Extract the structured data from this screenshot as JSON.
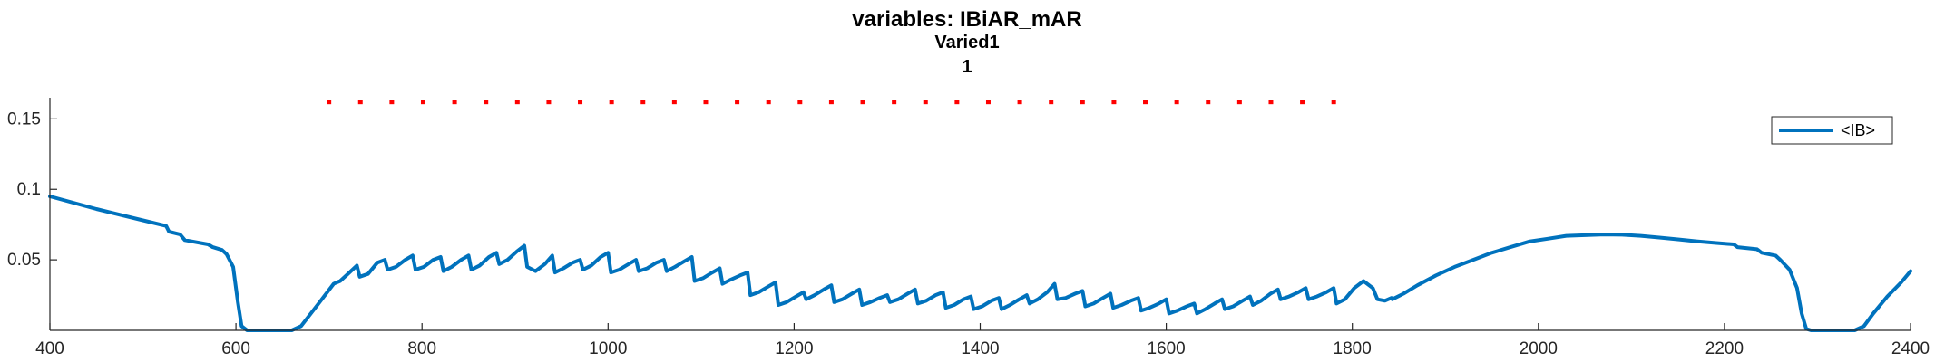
{
  "chart_data": {
    "type": "line",
    "title": "variables: IBiAR_mAR",
    "subtitle_lines": [
      "Varied1",
      "1"
    ],
    "xlabel": "",
    "ylabel": "",
    "xlim": [
      400,
      2400
    ],
    "ylim": [
      0,
      0.165
    ],
    "x_ticks": [
      400,
      600,
      800,
      1000,
      1200,
      1400,
      1600,
      1800,
      2000,
      2200,
      2400
    ],
    "x_tick_labels": [
      "400",
      "600",
      "800",
      "1000",
      "1200",
      "1400",
      "1600",
      "1800",
      "2000",
      "2200",
      "2400"
    ],
    "y_ticks": [
      0.05,
      0.1,
      0.15
    ],
    "y_tick_labels": [
      "0.05",
      "0.1",
      "0.15"
    ],
    "grid": false,
    "legend_position": "top-right",
    "series": [
      {
        "name": "<IB>",
        "color": "#0072BD",
        "style": "solid",
        "points": [
          [
            400,
            0.095
          ],
          [
            450,
            0.086
          ],
          [
            500,
            0.078
          ],
          [
            525,
            0.074
          ],
          [
            528,
            0.07
          ],
          [
            540,
            0.068
          ],
          [
            545,
            0.064
          ],
          [
            570,
            0.061
          ],
          [
            575,
            0.059
          ],
          [
            585,
            0.057
          ],
          [
            590,
            0.054
          ],
          [
            597,
            0.045
          ],
          [
            602,
            0.02
          ],
          [
            606,
            0.003
          ],
          [
            612,
            0.0
          ],
          [
            660,
            0.0
          ],
          [
            670,
            0.003
          ],
          [
            690,
            0.02
          ],
          [
            705,
            0.033
          ],
          [
            712,
            0.035
          ],
          [
            722,
            0.041
          ],
          [
            730,
            0.046
          ],
          [
            733,
            0.038
          ],
          [
            742,
            0.04
          ],
          [
            752,
            0.048
          ],
          [
            760,
            0.05
          ],
          [
            763,
            0.043
          ],
          [
            772,
            0.045
          ],
          [
            782,
            0.05
          ],
          [
            790,
            0.053
          ],
          [
            793,
            0.043
          ],
          [
            802,
            0.045
          ],
          [
            812,
            0.05
          ],
          [
            820,
            0.052
          ],
          [
            823,
            0.042
          ],
          [
            832,
            0.045
          ],
          [
            842,
            0.05
          ],
          [
            850,
            0.053
          ],
          [
            853,
            0.043
          ],
          [
            862,
            0.046
          ],
          [
            872,
            0.052
          ],
          [
            880,
            0.055
          ],
          [
            883,
            0.047
          ],
          [
            892,
            0.05
          ],
          [
            902,
            0.056
          ],
          [
            910,
            0.06
          ],
          [
            913,
            0.045
          ],
          [
            922,
            0.042
          ],
          [
            932,
            0.047
          ],
          [
            940,
            0.053
          ],
          [
            943,
            0.041
          ],
          [
            952,
            0.044
          ],
          [
            962,
            0.048
          ],
          [
            970,
            0.05
          ],
          [
            973,
            0.043
          ],
          [
            982,
            0.046
          ],
          [
            992,
            0.052
          ],
          [
            1000,
            0.055
          ],
          [
            1003,
            0.041
          ],
          [
            1012,
            0.043
          ],
          [
            1022,
            0.047
          ],
          [
            1030,
            0.05
          ],
          [
            1033,
            0.042
          ],
          [
            1042,
            0.044
          ],
          [
            1052,
            0.048
          ],
          [
            1060,
            0.05
          ],
          [
            1063,
            0.042
          ],
          [
            1072,
            0.045
          ],
          [
            1082,
            0.049
          ],
          [
            1090,
            0.052
          ],
          [
            1093,
            0.035
          ],
          [
            1102,
            0.037
          ],
          [
            1112,
            0.041
          ],
          [
            1120,
            0.044
          ],
          [
            1123,
            0.033
          ],
          [
            1132,
            0.036
          ],
          [
            1142,
            0.039
          ],
          [
            1150,
            0.041
          ],
          [
            1153,
            0.025
          ],
          [
            1162,
            0.027
          ],
          [
            1172,
            0.031
          ],
          [
            1180,
            0.034
          ],
          [
            1183,
            0.018
          ],
          [
            1192,
            0.02
          ],
          [
            1202,
            0.024
          ],
          [
            1210,
            0.027
          ],
          [
            1213,
            0.022
          ],
          [
            1222,
            0.025
          ],
          [
            1232,
            0.029
          ],
          [
            1240,
            0.032
          ],
          [
            1243,
            0.02
          ],
          [
            1252,
            0.022
          ],
          [
            1262,
            0.026
          ],
          [
            1270,
            0.029
          ],
          [
            1273,
            0.018
          ],
          [
            1282,
            0.02
          ],
          [
            1292,
            0.023
          ],
          [
            1300,
            0.025
          ],
          [
            1303,
            0.02
          ],
          [
            1312,
            0.022
          ],
          [
            1322,
            0.026
          ],
          [
            1330,
            0.029
          ],
          [
            1333,
            0.019
          ],
          [
            1342,
            0.021
          ],
          [
            1352,
            0.025
          ],
          [
            1360,
            0.027
          ],
          [
            1363,
            0.016
          ],
          [
            1372,
            0.018
          ],
          [
            1382,
            0.022
          ],
          [
            1390,
            0.024
          ],
          [
            1393,
            0.015
          ],
          [
            1402,
            0.017
          ],
          [
            1412,
            0.021
          ],
          [
            1420,
            0.023
          ],
          [
            1423,
            0.015
          ],
          [
            1432,
            0.018
          ],
          [
            1442,
            0.022
          ],
          [
            1450,
            0.025
          ],
          [
            1453,
            0.019
          ],
          [
            1462,
            0.022
          ],
          [
            1472,
            0.027
          ],
          [
            1480,
            0.033
          ],
          [
            1483,
            0.022
          ],
          [
            1492,
            0.023
          ],
          [
            1502,
            0.026
          ],
          [
            1510,
            0.028
          ],
          [
            1513,
            0.017
          ],
          [
            1522,
            0.019
          ],
          [
            1532,
            0.023
          ],
          [
            1540,
            0.026
          ],
          [
            1543,
            0.016
          ],
          [
            1552,
            0.018
          ],
          [
            1562,
            0.021
          ],
          [
            1570,
            0.023
          ],
          [
            1573,
            0.014
          ],
          [
            1582,
            0.016
          ],
          [
            1592,
            0.019
          ],
          [
            1600,
            0.022
          ],
          [
            1603,
            0.012
          ],
          [
            1612,
            0.014
          ],
          [
            1622,
            0.017
          ],
          [
            1630,
            0.019
          ],
          [
            1633,
            0.012
          ],
          [
            1642,
            0.015
          ],
          [
            1652,
            0.019
          ],
          [
            1660,
            0.022
          ],
          [
            1663,
            0.015
          ],
          [
            1672,
            0.017
          ],
          [
            1682,
            0.021
          ],
          [
            1690,
            0.024
          ],
          [
            1693,
            0.018
          ],
          [
            1702,
            0.021
          ],
          [
            1712,
            0.026
          ],
          [
            1720,
            0.029
          ],
          [
            1723,
            0.022
          ],
          [
            1732,
            0.024
          ],
          [
            1742,
            0.027
          ],
          [
            1750,
            0.03
          ],
          [
            1753,
            0.022
          ],
          [
            1762,
            0.024
          ],
          [
            1772,
            0.027
          ],
          [
            1780,
            0.03
          ],
          [
            1783,
            0.019
          ],
          [
            1792,
            0.022
          ],
          [
            1802,
            0.03
          ],
          [
            1812,
            0.035
          ],
          [
            1822,
            0.03
          ],
          [
            1827,
            0.022
          ],
          [
            1835,
            0.021
          ],
          [
            1842,
            0.023
          ],
          [
            1843,
            0.022
          ],
          [
            1855,
            0.026
          ],
          [
            1870,
            0.032
          ],
          [
            1890,
            0.039
          ],
          [
            1910,
            0.045
          ],
          [
            1930,
            0.05
          ],
          [
            1950,
            0.055
          ],
          [
            1970,
            0.059
          ],
          [
            1990,
            0.063
          ],
          [
            2010,
            0.065
          ],
          [
            2030,
            0.067
          ],
          [
            2050,
            0.0675
          ],
          [
            2070,
            0.068
          ],
          [
            2090,
            0.0678
          ],
          [
            2110,
            0.067
          ],
          [
            2130,
            0.0658
          ],
          [
            2150,
            0.0645
          ],
          [
            2170,
            0.0632
          ],
          [
            2190,
            0.062
          ],
          [
            2210,
            0.061
          ],
          [
            2214,
            0.059
          ],
          [
            2235,
            0.0575
          ],
          [
            2240,
            0.055
          ],
          [
            2255,
            0.053
          ],
          [
            2260,
            0.05
          ],
          [
            2270,
            0.043
          ],
          [
            2278,
            0.03
          ],
          [
            2283,
            0.012
          ],
          [
            2288,
            0.001
          ],
          [
            2293,
            0.0
          ],
          [
            2340,
            0.0
          ],
          [
            2350,
            0.003
          ],
          [
            2360,
            0.012
          ],
          [
            2375,
            0.024
          ],
          [
            2390,
            0.034
          ],
          [
            2400,
            0.042
          ]
        ]
      },
      {
        "color": "#FF0000",
        "style": "dotted",
        "points": [
          [
            700,
            0.162
          ],
          [
            1780,
            0.162
          ]
        ]
      }
    ]
  }
}
